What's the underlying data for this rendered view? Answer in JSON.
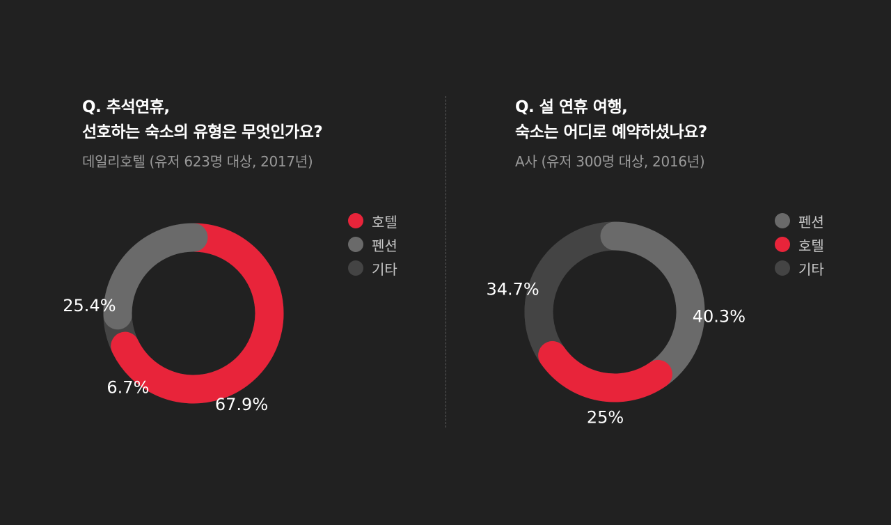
{
  "colors": {
    "background": "#212121",
    "hotel": "#e8243a",
    "pension": "#6a6a6a",
    "other": "#444444"
  },
  "chart_data": [
    {
      "type": "pie",
      "donut": true,
      "title_lines": [
        "Q. 추석연휴,",
        "선호하는 숙소의 유형은 무엇인가요?"
      ],
      "subtitle": "데일리호텔 (유저 623명 대상, 2017년)",
      "legend": [
        "호텔",
        "펜션",
        "기타"
      ],
      "legend_position": "right",
      "slices": [
        {
          "name": "호텔",
          "value": 67.9,
          "label": "67.9%",
          "color": "#e8243a"
        },
        {
          "name": "펜션",
          "value": 25.4,
          "label": "25.4%",
          "color": "#6a6a6a"
        },
        {
          "name": "기타",
          "value": 6.7,
          "label": "6.7%",
          "color": "#444444"
        }
      ]
    },
    {
      "type": "pie",
      "donut": true,
      "title_lines": [
        "Q. 설 연휴 여행,",
        "숙소는 어디로 예약하셨나요?"
      ],
      "subtitle": "A사 (유저 300명 대상, 2016년)",
      "legend": [
        "펜션",
        "호텔",
        "기타"
      ],
      "legend_position": "right",
      "slices": [
        {
          "name": "펜션",
          "value": 40.3,
          "label": "40.3%",
          "color": "#6a6a6a"
        },
        {
          "name": "호텔",
          "value": 25,
          "label": "25%",
          "color": "#e8243a"
        },
        {
          "name": "기타",
          "value": 34.7,
          "label": "34.7%",
          "color": "#444444"
        }
      ]
    }
  ]
}
